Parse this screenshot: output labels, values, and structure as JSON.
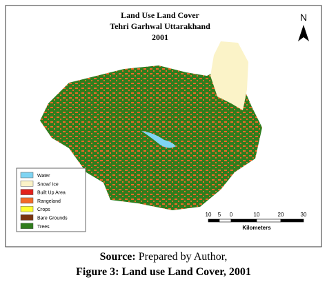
{
  "map": {
    "title": "Land Use Land Cover",
    "subtitle": "Tehri Garhwal Uttarakhand",
    "year": "2001",
    "north": "N",
    "legend": [
      {
        "label": "Water",
        "color": "#7fd4f2"
      },
      {
        "label": "Snow/ Ice",
        "color": "#fbf3c8"
      },
      {
        "label": "Built Up Area",
        "color": "#e3211c"
      },
      {
        "label": "Rangeland",
        "color": "#f26a2a"
      },
      {
        "label": "Crops",
        "color": "#ffff33"
      },
      {
        "label": "Bare Grounds",
        "color": "#7a3510"
      },
      {
        "label": "Trees",
        "color": "#2f7d1d"
      }
    ],
    "scale_bar": {
      "labels": [
        10,
        5,
        0,
        10,
        20,
        30
      ],
      "unit": "Kilometers"
    }
  },
  "caption": {
    "source_label": "Source:",
    "source_text": "Prepared by Author,",
    "figure": "Figure 3: Land use Land Cover, 2001"
  }
}
